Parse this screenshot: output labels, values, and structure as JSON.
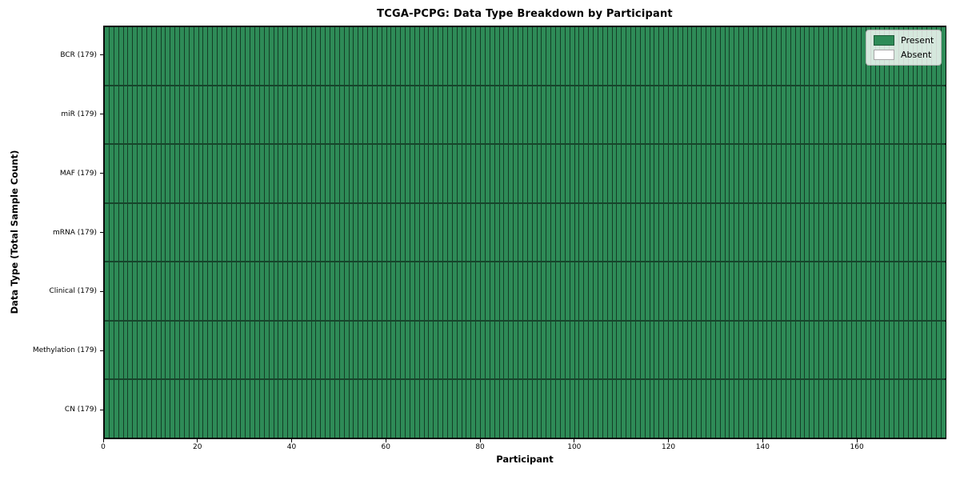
{
  "chart_data": {
    "type": "heatmap",
    "title": "TCGA-PCPG: Data Type Breakdown by Participant",
    "xlabel": "Participant",
    "ylabel": "Data Type (Total Sample Count)",
    "x_ticks": [
      0,
      20,
      40,
      60,
      80,
      100,
      120,
      140,
      160
    ],
    "xlim": [
      0,
      179
    ],
    "n_participants": 179,
    "rows": [
      {
        "label": "BCR (179)",
        "data_type": "BCR",
        "total_samples": 179,
        "present": 179,
        "absent": 0
      },
      {
        "label": "miR (179)",
        "data_type": "miR",
        "total_samples": 179,
        "present": 179,
        "absent": 0
      },
      {
        "label": "MAF (179)",
        "data_type": "MAF",
        "total_samples": 179,
        "present": 179,
        "absent": 0
      },
      {
        "label": "mRNA (179)",
        "data_type": "mRNA",
        "total_samples": 179,
        "present": 179,
        "absent": 0
      },
      {
        "label": "Clinical (179)",
        "data_type": "Clinical",
        "total_samples": 179,
        "present": 179,
        "absent": 0
      },
      {
        "label": "Methylation (179)",
        "data_type": "Methylation",
        "total_samples": 179,
        "present": 179,
        "absent": 0
      },
      {
        "label": "CN (179)",
        "data_type": "CN",
        "total_samples": 179,
        "present": 179,
        "absent": 0
      }
    ],
    "legend": [
      {
        "label": "Present",
        "color": "#2e8b57"
      },
      {
        "label": "Absent",
        "color": "#ffffff"
      }
    ],
    "legend_position": "upper right",
    "grid": false,
    "colors": {
      "present": "#2e8b57",
      "absent": "#ffffff",
      "cell_edge": "rgba(0,0,0,0.55)",
      "row_separator": "rgba(0,0,0,0.5)",
      "spine": "#0a0a0a",
      "legend_face": "rgba(255,255,255,0.8)"
    }
  }
}
